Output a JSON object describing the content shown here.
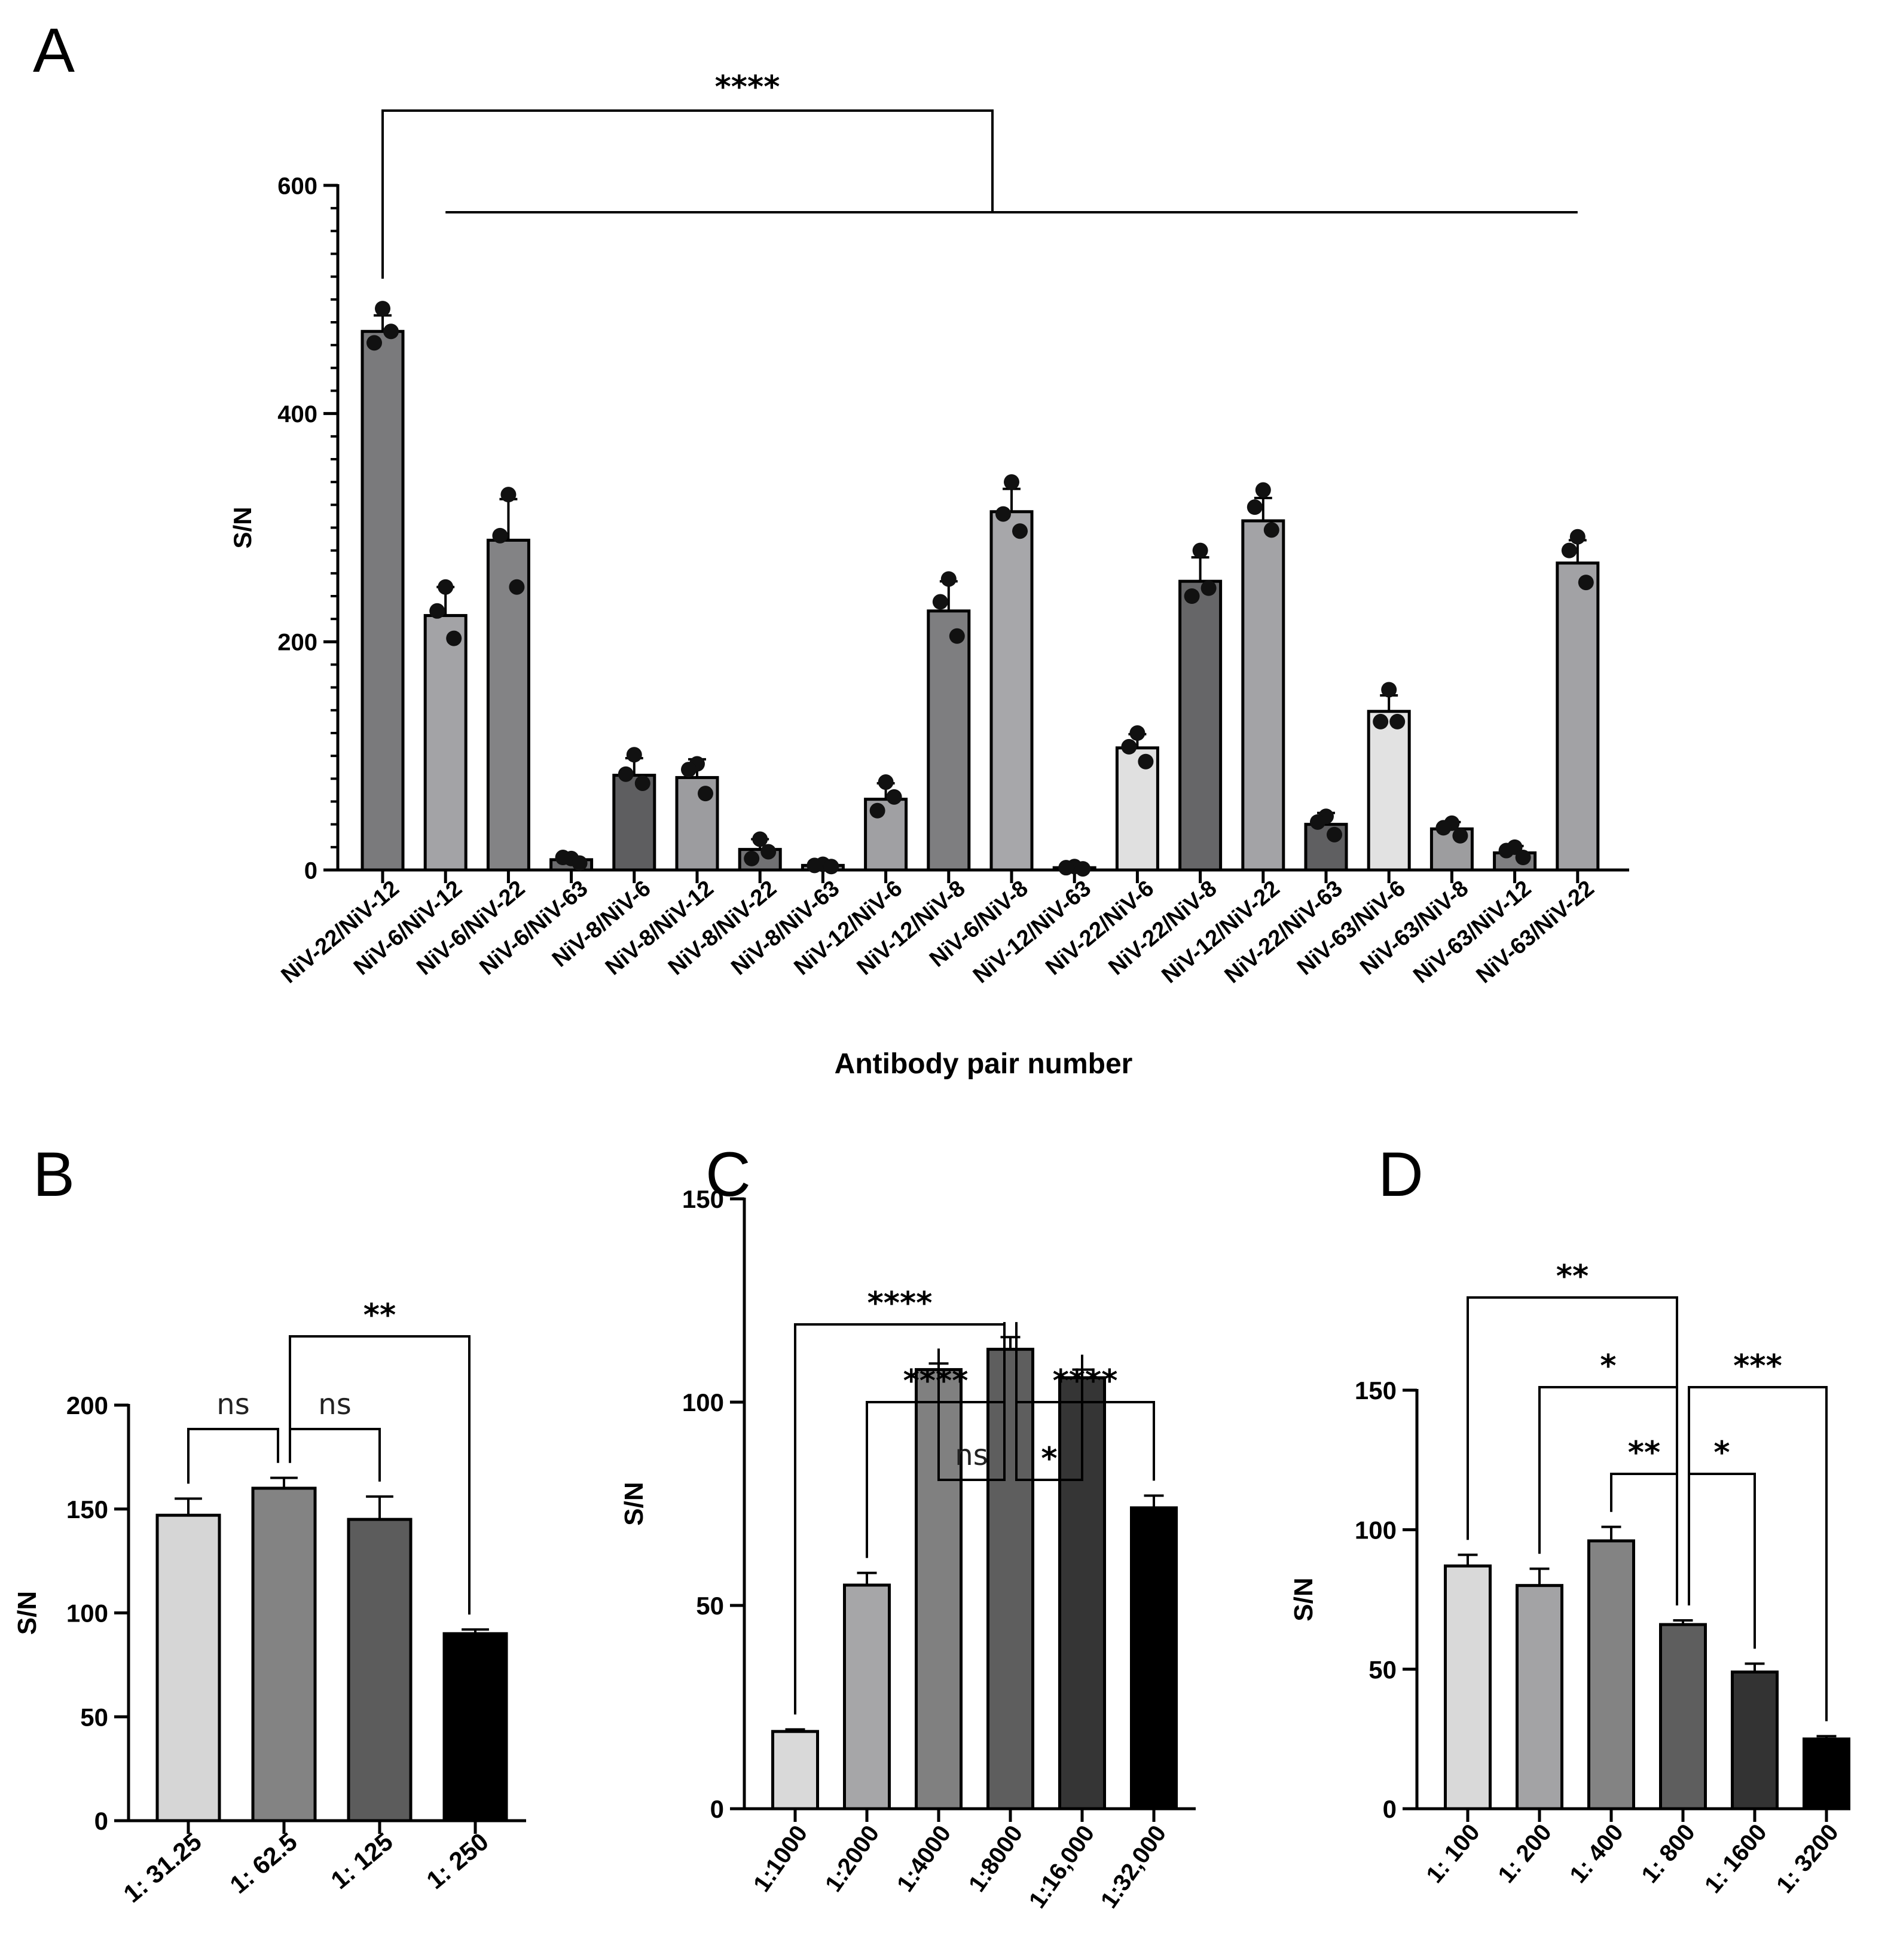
{
  "figure": {
    "panel_labels": [
      "A",
      "B",
      "C",
      "D"
    ]
  },
  "chart_data": [
    {
      "panel": "A",
      "type": "bar",
      "title": "",
      "xlabel": "Antibody pair number",
      "ylabel": "S/N",
      "ylim": [
        0,
        600
      ],
      "yticks": [
        0,
        200,
        400,
        600
      ],
      "categories": [
        "NiV-22/NiV-12",
        "NiV-6/NiV-12",
        "NiV-6/NiV-22",
        "NiV-6/NiV-63",
        "NiV-8/NiV-6",
        "NiV-8/NiV-12",
        "NiV-8/NiV-22",
        "NiV-8/NiV-63",
        "NiV-12/NiV-6",
        "NiV-12/NiV-8",
        "NiV-6/NiV-8",
        "NiV-12/NiV-63",
        "NiV-22/NiV-6",
        "NiV-22/NiV-8",
        "NiV-12/NiV-22",
        "NiV-22/NiV-63",
        "NiV-63/NiV-6",
        "NiV-63/NiV-8",
        "NiV-63/NiV-12",
        "NiV-63/NiV-22"
      ],
      "values": [
        472,
        223,
        289,
        9,
        83,
        81,
        18,
        4,
        62,
        227,
        314,
        2,
        107,
        253,
        306,
        40,
        139,
        36,
        15,
        269
      ],
      "errors": [
        14,
        25,
        36,
        2,
        15,
        16,
        9,
        2,
        14,
        26,
        20,
        1,
        12,
        21,
        20,
        10,
        14,
        6,
        6,
        20
      ],
      "points": [
        [
          492,
          462,
          472
        ],
        [
          248,
          227,
          203
        ],
        [
          329,
          293,
          248
        ],
        [
          10,
          11,
          6
        ],
        [
          101,
          84,
          76
        ],
        [
          93,
          88,
          67
        ],
        [
          27,
          10,
          16
        ],
        [
          5,
          4,
          3
        ],
        [
          77,
          52,
          64
        ],
        [
          255,
          235,
          205
        ],
        [
          340,
          312,
          297
        ],
        [
          3,
          2,
          1
        ],
        [
          120,
          108,
          95
        ],
        [
          280,
          240,
          247
        ],
        [
          333,
          318,
          298
        ],
        [
          47,
          42,
          31
        ],
        [
          158,
          130,
          130
        ],
        [
          41,
          37,
          30
        ],
        [
          20,
          17,
          11
        ],
        [
          292,
          280,
          252
        ]
      ],
      "colors": [
        "#7a7a7c",
        "#a3a3a6",
        "#838385",
        "#6b6b6d",
        "#5e5e60",
        "#9c9c9f",
        "#717173",
        "#8a8a8c",
        "#a0a0a3",
        "#7e7e80",
        "#a7a7aa",
        "#858587",
        "#e0e0e0",
        "#666668",
        "#a3a3a6",
        "#5f5f61",
        "#e2e2e2",
        "#9d9d9f",
        "#7f7f81",
        "#a2a2a5"
      ],
      "annotations": [
        {
          "label": "****",
          "left": 0,
          "right": [
            1,
            19
          ]
        }
      ]
    },
    {
      "panel": "B",
      "type": "bar",
      "title": "",
      "xlabel": "",
      "ylabel": "S/N",
      "ylim": [
        0,
        200
      ],
      "yticks": [
        0,
        50,
        100,
        150,
        200
      ],
      "categories": [
        "1: 31.25",
        "1: 62.5",
        "1: 125",
        "1: 250"
      ],
      "values": [
        147,
        160,
        145,
        90
      ],
      "errors": [
        8,
        5,
        11,
        2
      ],
      "colors": [
        "#d6d6d6",
        "#838383",
        "#5c5c5c",
        "#000000"
      ],
      "annotations": [
        {
          "label": "ns",
          "a": 0,
          "b": 1
        },
        {
          "label": "ns",
          "a": 1,
          "b": 2
        },
        {
          "label": "**",
          "a": 1,
          "b": 3
        }
      ]
    },
    {
      "panel": "C",
      "type": "bar",
      "title": "",
      "xlabel": "",
      "ylabel": "S/N",
      "ylim": [
        0,
        150
      ],
      "yticks": [
        0,
        50,
        100,
        150
      ],
      "categories": [
        "1:1000",
        "1:2000",
        "1:4000",
        "1:8000",
        "1:16,000",
        "1:32,000"
      ],
      "values": [
        19,
        55,
        108,
        113,
        106,
        74
      ],
      "errors": [
        0.5,
        3,
        1.5,
        3,
        2,
        3
      ],
      "colors": [
        "#d9d9d9",
        "#a6a6a8",
        "#808080",
        "#5e5e5e",
        "#353535",
        "#000000"
      ],
      "annotations": [
        {
          "label": "ns",
          "a": 2,
          "b": 3
        },
        {
          "label": "*",
          "a": 3,
          "b": 4
        },
        {
          "label": "****",
          "a": 1,
          "b": 3
        },
        {
          "label": "****",
          "a": 3,
          "b": 5
        },
        {
          "label": "****",
          "a": 0,
          "b": 3
        }
      ]
    },
    {
      "panel": "D",
      "type": "bar",
      "title": "",
      "xlabel": "",
      "ylabel": "S/N",
      "ylim": [
        0,
        150
      ],
      "yticks": [
        0,
        50,
        100,
        150
      ],
      "categories": [
        "1: 100",
        "1: 200",
        "1: 400",
        "1: 800",
        "1: 1600",
        "1: 3200"
      ],
      "values": [
        87,
        80,
        96,
        66,
        49,
        25
      ],
      "errors": [
        4,
        6,
        5,
        1.5,
        3,
        1
      ],
      "colors": [
        "#d9d9d9",
        "#a3a3a5",
        "#838383",
        "#5e5e5e",
        "#333333",
        "#000000"
      ],
      "annotations": [
        {
          "label": "**",
          "a": 2,
          "b": 3
        },
        {
          "label": "*",
          "a": 3,
          "b": 4
        },
        {
          "label": "*",
          "a": 1,
          "b": 3
        },
        {
          "label": "***",
          "a": 3,
          "b": 5
        },
        {
          "label": "**",
          "a": 0,
          "b": 3
        }
      ]
    }
  ]
}
